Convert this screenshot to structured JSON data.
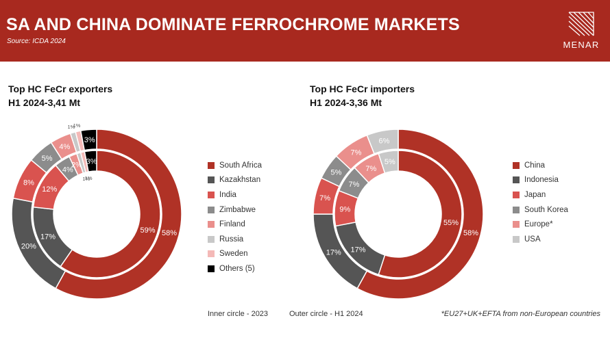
{
  "header": {
    "title": "SA AND CHINA DOMINATE FERROCHROME MARKETS",
    "source": "Source:   ICDA 2024",
    "logo_text": "MENAR"
  },
  "colors": {
    "header_bg": "#a8291f",
    "dark_red": "#b03226",
    "dark_gray": "#555555",
    "mid_red": "#d9534f",
    "mid_gray": "#8c8c8c",
    "light_red": "#ea8f8c",
    "light_gray": "#c8c8c8",
    "pale_pink": "#f4b9b7",
    "black": "#000000"
  },
  "notes": {
    "inner_circle": "Inner circle - 2023",
    "outer_circle": "Outer circle - H1 2024",
    "footnote": "*EU27+UK+EFTA from non-European countries"
  },
  "chart_data": [
    {
      "type": "pie",
      "title": "Top HC FeCr exporters",
      "subtitle": "H1 2024-3,41 Mt",
      "categories": [
        "South Africa",
        "Kazakhstan",
        "India",
        "Zimbabwe",
        "Finland",
        "Russia",
        "Sweden",
        "Others (5)"
      ],
      "colors": [
        "#b03226",
        "#555555",
        "#d9534f",
        "#8c8c8c",
        "#ea8f8c",
        "#c8c8c8",
        "#f4b9b7",
        "#000000"
      ],
      "series": [
        {
          "ring": "outer",
          "values": [
            58,
            20,
            8,
            5,
            4,
            1,
            1,
            3
          ],
          "labels": [
            "58%",
            "20%",
            "8%",
            "5%",
            "4%",
            "1%",
            "1%",
            "3%"
          ]
        },
        {
          "ring": "inner",
          "values": [
            59,
            17,
            12,
            4,
            2,
            1,
            1,
            3
          ],
          "labels": [
            "59%",
            "17%",
            "12%",
            "4%",
            "2%",
            "1%",
            "1%",
            "3%"
          ]
        }
      ],
      "legend": "right"
    },
    {
      "type": "pie",
      "title": "Top HC FeCr importers",
      "subtitle": "H1 2024-3,36 Mt",
      "categories": [
        "China",
        "Indonesia",
        "Japan",
        "South Korea",
        "Europe*",
        "USA"
      ],
      "colors": [
        "#b03226",
        "#555555",
        "#d9534f",
        "#8c8c8c",
        "#ea8f8c",
        "#c8c8c8"
      ],
      "series": [
        {
          "ring": "outer",
          "values": [
            58,
            17,
            7,
            5,
            7,
            6
          ],
          "labels": [
            "58%",
            "17%",
            "7%",
            "5%",
            "7%",
            "6%"
          ]
        },
        {
          "ring": "inner",
          "values": [
            55,
            17,
            9,
            7,
            7,
            5
          ],
          "labels": [
            "55%",
            "17%",
            "9%",
            "7%",
            "7%",
            "5%"
          ]
        }
      ],
      "legend": "right"
    }
  ]
}
